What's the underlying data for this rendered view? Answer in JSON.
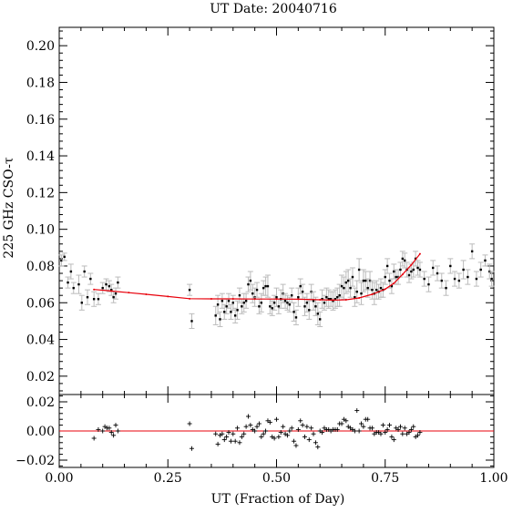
{
  "chart_data": [
    {
      "type": "scatter",
      "title": "UT Date: 20040716",
      "xlabel": "",
      "ylabel": "225 GHz CSO-τ",
      "xlim": [
        0.0,
        1.0
      ],
      "ylim": [
        0.01,
        0.21
      ],
      "yticks": [
        "0.02",
        "0.04",
        "0.06",
        "0.08",
        "0.10",
        "0.12",
        "0.14",
        "0.16",
        "0.18",
        "0.20"
      ],
      "grid": false,
      "series": [
        {
          "style": "points-with-errorbars",
          "color": "#000000",
          "errorbar_color": "#bbbbbb",
          "x": [
            0.005,
            0.012,
            0.02,
            0.027,
            0.033,
            0.045,
            0.052,
            0.058,
            0.065,
            0.072,
            0.08,
            0.09,
            0.1,
            0.108,
            0.115,
            0.12,
            0.125,
            0.13,
            0.135,
            0.3,
            0.305,
            0.36,
            0.365,
            0.37,
            0.375,
            0.38,
            0.385,
            0.39,
            0.395,
            0.4,
            0.405,
            0.41,
            0.415,
            0.42,
            0.425,
            0.43,
            0.435,
            0.44,
            0.445,
            0.45,
            0.455,
            0.46,
            0.465,
            0.47,
            0.475,
            0.48,
            0.485,
            0.49,
            0.495,
            0.5,
            0.505,
            0.51,
            0.515,
            0.52,
            0.525,
            0.53,
            0.535,
            0.54,
            0.545,
            0.55,
            0.555,
            0.56,
            0.565,
            0.57,
            0.575,
            0.58,
            0.585,
            0.59,
            0.595,
            0.6,
            0.605,
            0.61,
            0.615,
            0.62,
            0.625,
            0.63,
            0.635,
            0.64,
            0.645,
            0.65,
            0.655,
            0.66,
            0.665,
            0.67,
            0.675,
            0.68,
            0.685,
            0.69,
            0.695,
            0.7,
            0.705,
            0.71,
            0.715,
            0.72,
            0.725,
            0.73,
            0.735,
            0.74,
            0.745,
            0.75,
            0.755,
            0.76,
            0.765,
            0.77,
            0.775,
            0.78,
            0.785,
            0.79,
            0.795,
            0.8,
            0.805,
            0.81,
            0.815,
            0.82,
            0.825,
            0.83,
            0.84,
            0.85,
            0.86,
            0.87,
            0.88,
            0.89,
            0.9,
            0.91,
            0.92,
            0.93,
            0.94,
            0.95,
            0.96,
            0.97,
            0.98,
            0.99,
            0.995
          ],
          "y": [
            0.083,
            0.085,
            0.071,
            0.077,
            0.068,
            0.07,
            0.06,
            0.077,
            0.063,
            0.073,
            0.062,
            0.062,
            0.068,
            0.07,
            0.069,
            0.067,
            0.063,
            0.065,
            0.071,
            0.067,
            0.05,
            0.053,
            0.059,
            0.051,
            0.061,
            0.055,
            0.058,
            0.061,
            0.055,
            0.06,
            0.053,
            0.056,
            0.064,
            0.058,
            0.06,
            0.061,
            0.07,
            0.072,
            0.065,
            0.063,
            0.067,
            0.058,
            0.06,
            0.068,
            0.069,
            0.069,
            0.058,
            0.057,
            0.06,
            0.063,
            0.058,
            0.062,
            0.065,
            0.061,
            0.06,
            0.059,
            0.064,
            0.055,
            0.052,
            0.063,
            0.069,
            0.066,
            0.058,
            0.06,
            0.056,
            0.066,
            0.061,
            0.058,
            0.054,
            0.051,
            0.062,
            0.06,
            0.063,
            0.062,
            0.062,
            0.061,
            0.062,
            0.063,
            0.064,
            0.069,
            0.068,
            0.071,
            0.072,
            0.068,
            0.074,
            0.063,
            0.066,
            0.078,
            0.065,
            0.072,
            0.072,
            0.068,
            0.072,
            0.067,
            0.065,
            0.067,
            0.066,
            0.068,
            0.067,
            0.074,
            0.08,
            0.072,
            0.069,
            0.077,
            0.074,
            0.074,
            0.078,
            0.084,
            0.083,
            0.078,
            0.075,
            0.077,
            0.078,
            0.084,
            0.079,
            0.078,
            0.073,
            0.07,
            0.079,
            0.076,
            0.072,
            0.068,
            0.08,
            0.073,
            0.072,
            0.078,
            0.074,
            0.088,
            0.073,
            0.078,
            0.083,
            0.077,
            0.073
          ],
          "yerr": [
            0.003,
            0.002,
            0.003,
            0.004,
            0.003,
            0.005,
            0.004,
            0.003,
            0.004,
            0.003,
            0.004,
            0.003,
            0.003,
            0.003,
            0.003,
            0.003,
            0.003,
            0.003,
            0.003,
            0.003,
            0.004,
            0.005,
            0.005,
            0.004,
            0.004,
            0.004,
            0.004,
            0.004,
            0.004,
            0.004,
            0.004,
            0.005,
            0.004,
            0.004,
            0.005,
            0.004,
            0.004,
            0.005,
            0.005,
            0.005,
            0.004,
            0.004,
            0.005,
            0.004,
            0.005,
            0.006,
            0.004,
            0.004,
            0.004,
            0.005,
            0.004,
            0.005,
            0.005,
            0.004,
            0.004,
            0.004,
            0.004,
            0.005,
            0.004,
            0.005,
            0.004,
            0.004,
            0.005,
            0.005,
            0.005,
            0.004,
            0.005,
            0.005,
            0.006,
            0.004,
            0.005,
            0.004,
            0.005,
            0.005,
            0.004,
            0.005,
            0.005,
            0.005,
            0.006,
            0.006,
            0.006,
            0.006,
            0.006,
            0.005,
            0.005,
            0.005,
            0.006,
            0.006,
            0.006,
            0.006,
            0.005,
            0.005,
            0.005,
            0.005,
            0.006,
            0.005,
            0.004,
            0.005,
            0.004,
            0.004,
            0.004,
            0.004,
            0.004,
            0.004,
            0.004,
            0.004,
            0.004,
            0.004,
            0.004,
            0.004,
            0.004,
            0.004,
            0.004,
            0.004,
            0.004,
            0.004,
            0.004,
            0.004,
            0.004,
            0.004,
            0.004,
            0.004,
            0.004,
            0.004,
            0.004,
            0.005,
            0.004,
            0.004,
            0.004,
            0.004,
            0.003,
            0.004,
            0.004
          ]
        },
        {
          "style": "fit-line",
          "color": "#e8000b",
          "x": [
            0.08,
            0.12,
            0.16,
            0.2,
            0.25,
            0.3,
            0.35,
            0.4,
            0.45,
            0.5,
            0.55,
            0.6,
            0.63,
            0.66,
            0.69,
            0.72,
            0.75,
            0.77,
            0.79,
            0.81,
            0.83
          ],
          "y": [
            0.0672,
            0.0664,
            0.0655,
            0.0646,
            0.0634,
            0.0622,
            0.0621,
            0.0621,
            0.062,
            0.062,
            0.0619,
            0.0616,
            0.0614,
            0.0616,
            0.0626,
            0.0646,
            0.0674,
            0.0706,
            0.0754,
            0.0806,
            0.0866
          ]
        }
      ]
    },
    {
      "type": "scatter",
      "title": "",
      "xlabel": "UT (Fraction of Day)",
      "ylabel": "",
      "xlim": [
        0.0,
        1.0
      ],
      "ylim": [
        -0.025,
        0.025
      ],
      "xticks": [
        "0.00",
        "0.25",
        "0.50",
        "0.75",
        "1.00"
      ],
      "yticks": [
        "−0.02",
        "0.00",
        "0.02"
      ],
      "grid": false,
      "series": [
        {
          "style": "plus-markers",
          "color": "#000000",
          "x": [
            0.08,
            0.09,
            0.1,
            0.105,
            0.11,
            0.115,
            0.12,
            0.125,
            0.13,
            0.135,
            0.3,
            0.305,
            0.36,
            0.365,
            0.37,
            0.375,
            0.38,
            0.385,
            0.39,
            0.395,
            0.4,
            0.405,
            0.41,
            0.415,
            0.42,
            0.425,
            0.43,
            0.435,
            0.44,
            0.445,
            0.45,
            0.455,
            0.46,
            0.465,
            0.47,
            0.475,
            0.48,
            0.485,
            0.49,
            0.495,
            0.5,
            0.505,
            0.51,
            0.515,
            0.52,
            0.525,
            0.53,
            0.535,
            0.54,
            0.545,
            0.55,
            0.555,
            0.56,
            0.565,
            0.57,
            0.575,
            0.58,
            0.585,
            0.59,
            0.595,
            0.6,
            0.605,
            0.61,
            0.615,
            0.62,
            0.625,
            0.63,
            0.635,
            0.64,
            0.645,
            0.65,
            0.655,
            0.66,
            0.665,
            0.67,
            0.675,
            0.68,
            0.685,
            0.69,
            0.695,
            0.7,
            0.705,
            0.71,
            0.715,
            0.72,
            0.725,
            0.73,
            0.735,
            0.74,
            0.745,
            0.75,
            0.755,
            0.76,
            0.765,
            0.77,
            0.775,
            0.78,
            0.785,
            0.79,
            0.795,
            0.8,
            0.805,
            0.81,
            0.815,
            0.82,
            0.825,
            0.83
          ],
          "y": [
            -0.005,
            0.001,
            0.0,
            0.003,
            0.002,
            0.002,
            -0.001,
            -0.003,
            0.004,
            0.0,
            0.005,
            -0.012,
            -0.002,
            -0.009,
            -0.003,
            -0.002,
            -0.006,
            -0.004,
            -0.001,
            -0.007,
            -0.002,
            -0.007,
            0.002,
            -0.008,
            -0.004,
            -0.002,
            0.003,
            0.01,
            0.004,
            0.001,
            0.0,
            0.003,
            0.005,
            -0.004,
            -0.002,
            0.0,
            0.007,
            0.006,
            -0.004,
            -0.005,
            0.008,
            -0.004,
            -0.001,
            0.003,
            -0.002,
            -0.003,
            0.0,
            0.002,
            -0.007,
            -0.01,
            0.001,
            0.007,
            0.004,
            -0.004,
            0.003,
            -0.006,
            0.002,
            -0.002,
            -0.008,
            -0.011,
            0.0,
            -0.001,
            0.002,
            0.001,
            0.001,
            0.0,
            0.001,
            0.001,
            0.001,
            0.005,
            0.005,
            0.008,
            0.007,
            0.003,
            0.002,
            0.001,
            0.0,
            0.014,
            0.0,
            0.005,
            0.003,
            0.008,
            0.008,
            0.002,
            0.002,
            -0.002,
            -0.001,
            -0.001,
            -0.002,
            0.004,
            -0.001,
            0.001,
            0.004,
            -0.004,
            -0.006,
            0.002,
            0.001,
            0.003,
            -0.002,
            0.002,
            -0.002,
            -0.001,
            0.001,
            0.003,
            -0.004,
            -0.003,
            -0.001
          ]
        },
        {
          "style": "zero-line",
          "color": "#e8000b",
          "x": [
            0.0,
            1.0
          ],
          "y": [
            0.0,
            0.0
          ]
        }
      ]
    }
  ]
}
